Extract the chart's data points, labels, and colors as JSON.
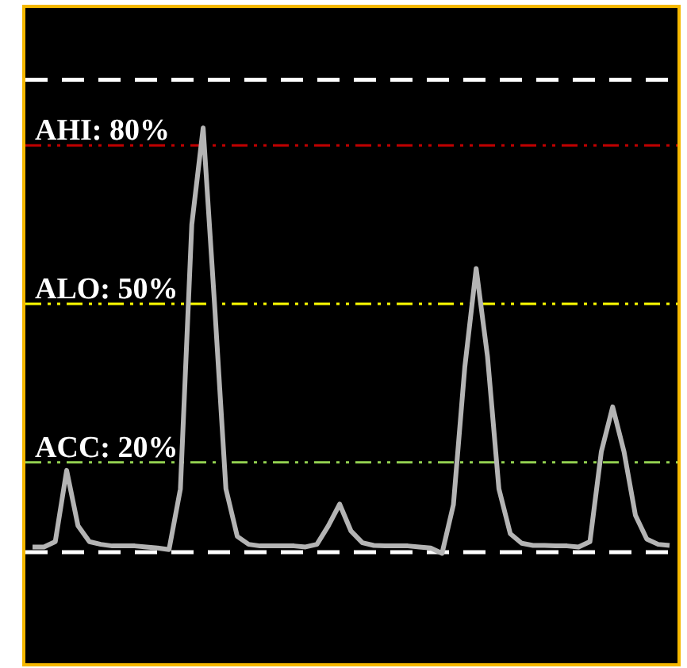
{
  "chart_data": {
    "type": "line",
    "categories": [
      null,
      null,
      null,
      null,
      null,
      null,
      null,
      null,
      null,
      null,
      null,
      null,
      null,
      null,
      null,
      null,
      null,
      null,
      null,
      null,
      null,
      null,
      null,
      null,
      null,
      null,
      null,
      null,
      null,
      null,
      null,
      null,
      null,
      null,
      null,
      null,
      null,
      null,
      null,
      null,
      null,
      null,
      null,
      null,
      null,
      null,
      null,
      null,
      null,
      null,
      null,
      null,
      null,
      null,
      null,
      null,
      null
    ],
    "series": [
      {
        "color": "#b4b4b4",
        "values": [
          4,
          4,
          5,
          18.5,
          8,
          5,
          4.5,
          4.2,
          4.2,
          4.2,
          4,
          3.8,
          3.5,
          15,
          65,
          83.3,
          50,
          15,
          6,
          4.5,
          4.2,
          4.2,
          4.2,
          4.2,
          4,
          4.5,
          8,
          12.1,
          7,
          4.8,
          4.3,
          4.2,
          4.2,
          4.2,
          4,
          3.8,
          2.8,
          12,
          38,
          56.7,
          40,
          15,
          6.5,
          4.7,
          4.3,
          4.3,
          4.2,
          4.2,
          4,
          5,
          22,
          30.5,
          22,
          10,
          5.5,
          4.5,
          4.3
        ]
      }
    ],
    "ylim": [
      -18,
      106
    ],
    "ref_lines": [
      {
        "axis": "y",
        "value": 92.4,
        "color": "#ffffff",
        "line_style": "dashed"
      },
      {
        "axis": "y",
        "value": 80,
        "label": "AHI: 80%",
        "color": "#c00000"
      },
      {
        "axis": "y",
        "value": 50,
        "label": "ALO: 50%",
        "color": "#ffff00"
      },
      {
        "axis": "y",
        "value": 20,
        "label": "ACC: 20%",
        "color": "#92d050"
      },
      {
        "axis": "y",
        "value": 3,
        "color": "#ffffff",
        "line_style": "dashed"
      }
    ],
    "marker": "none",
    "legend": false,
    "tick_labels": false
  }
}
